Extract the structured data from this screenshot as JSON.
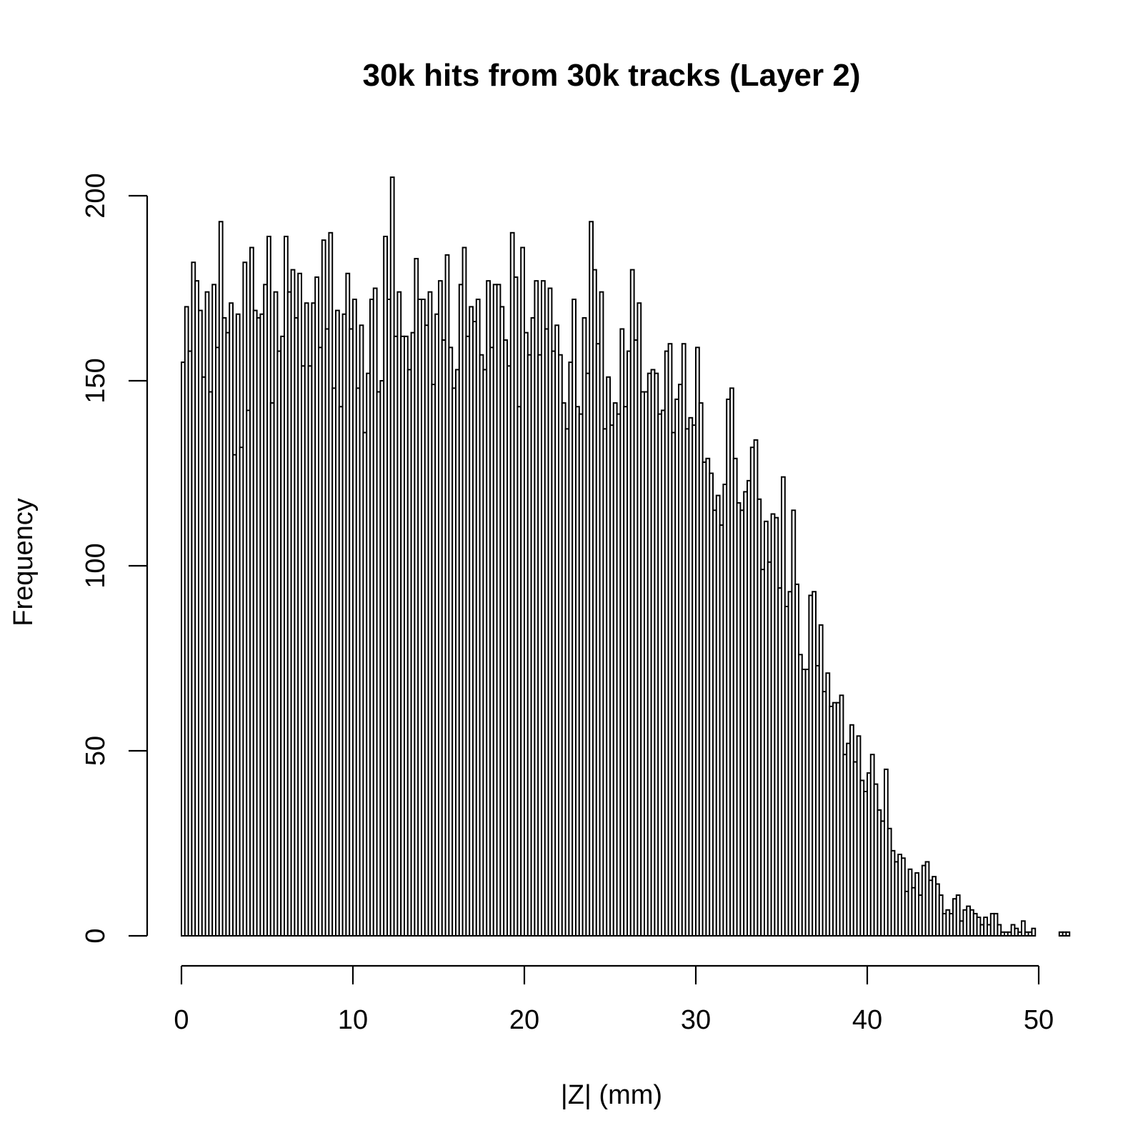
{
  "chart_data": {
    "type": "bar",
    "title": "30k hits from 30k tracks (Layer 2)",
    "xlabel": "|Z| (mm)",
    "ylabel": "Frequency",
    "xlim": [
      0,
      52
    ],
    "ylim": [
      0,
      205
    ],
    "x_ticks": [
      0,
      10,
      20,
      30,
      40,
      50
    ],
    "y_ticks": [
      0,
      50,
      100,
      150,
      200
    ],
    "x_tick_labels": [
      "0",
      "10",
      "20",
      "30",
      "40",
      "50"
    ],
    "y_tick_labels": [
      "0",
      "50",
      "100",
      "150",
      "200"
    ],
    "grid": false,
    "bin_start": 0,
    "bin_width": 0.2,
    "values": [
      155,
      170,
      158,
      182,
      177,
      169,
      151,
      174,
      147,
      176,
      159,
      193,
      167,
      163,
      171,
      130,
      168,
      132,
      182,
      142,
      186,
      169,
      167,
      168,
      176,
      189,
      144,
      174,
      158,
      162,
      189,
      174,
      180,
      167,
      179,
      154,
      171,
      154,
      171,
      178,
      159,
      188,
      164,
      190,
      148,
      169,
      143,
      168,
      179,
      164,
      172,
      148,
      165,
      136,
      152,
      172,
      175,
      147,
      150,
      189,
      172,
      205,
      162,
      174,
      162,
      162,
      153,
      163,
      183,
      172,
      172,
      165,
      174,
      149,
      168,
      177,
      161,
      184,
      159,
      148,
      153,
      176,
      186,
      162,
      170,
      166,
      172,
      157,
      153,
      177,
      159,
      176,
      176,
      170,
      161,
      154,
      190,
      178,
      143,
      186,
      163,
      157,
      167,
      177,
      157,
      177,
      164,
      175,
      158,
      165,
      157,
      144,
      137,
      155,
      172,
      143,
      141,
      167,
      152,
      193,
      180,
      160,
      174,
      137,
      151,
      138,
      144,
      141,
      164,
      143,
      158,
      180,
      161,
      171,
      147,
      147,
      152,
      153,
      152,
      141,
      142,
      158,
      160,
      136,
      145,
      149,
      160,
      137,
      140,
      138,
      159,
      144,
      128,
      129,
      125,
      115,
      119,
      111,
      122,
      145,
      148,
      129,
      117,
      115,
      120,
      123,
      132,
      134,
      118,
      99,
      112,
      101,
      114,
      113,
      94,
      124,
      89,
      93,
      115,
      95,
      76,
      72,
      72,
      92,
      93,
      73,
      84,
      66,
      71,
      62,
      63,
      63,
      65,
      49,
      52,
      57,
      47,
      54,
      42,
      39,
      44,
      49,
      41,
      34,
      31,
      45,
      29,
      23,
      20,
      22,
      21,
      12,
      18,
      13,
      17,
      11,
      19,
      20,
      15,
      16,
      14,
      11,
      6,
      7,
      6,
      10,
      11,
      4,
      7,
      8,
      7,
      6,
      5,
      3,
      5,
      3,
      6,
      6,
      3,
      1,
      1,
      1,
      3,
      2,
      1,
      4,
      1,
      1,
      2,
      0,
      0,
      0,
      0,
      0,
      0,
      0,
      1,
      1,
      1,
      0,
      0,
      0,
      0,
      0,
      0,
      0
    ]
  }
}
